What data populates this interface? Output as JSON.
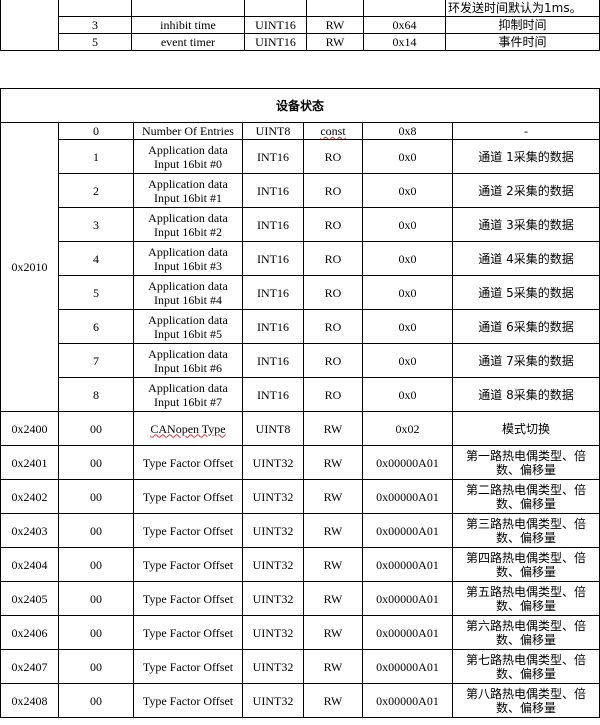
{
  "prev_table": {
    "note": "环发送时间默认为1ms。",
    "rows": [
      {
        "sub": "3",
        "name": "inhibit time",
        "type": "UINT16",
        "access": "RW",
        "default": "0x64",
        "desc": "抑制时间"
      },
      {
        "sub": "5",
        "name": "event timer",
        "type": "UINT16",
        "access": "RW",
        "default": "0x14",
        "desc": "事件时间"
      }
    ]
  },
  "device_status": {
    "title": "设备状态",
    "index_2010": "0x2010",
    "entries_row": {
      "sub": "0",
      "name": "Number Of Entries",
      "type": "UINT8",
      "access": "const",
      "default": "0x8",
      "desc": "-"
    },
    "inputs": [
      {
        "sub": "1",
        "name": "Application data Input 16bit #0",
        "type": "INT16",
        "access": "RO",
        "default": "0x0",
        "desc": "通道 1采集的数据"
      },
      {
        "sub": "2",
        "name": "Application data Input 16bit #1",
        "type": "INT16",
        "access": "RO",
        "default": "0x0",
        "desc": "通道 2采集的数据"
      },
      {
        "sub": "3",
        "name": "Application data Input 16bit #2",
        "type": "INT16",
        "access": "RO",
        "default": "0x0",
        "desc": "通道 3采集的数据"
      },
      {
        "sub": "4",
        "name": "Application data Input 16bit #3",
        "type": "INT16",
        "access": "RO",
        "default": "0x0",
        "desc": "通道 4采集的数据"
      },
      {
        "sub": "5",
        "name": "Application data Input 16bit #4",
        "type": "INT16",
        "access": "RO",
        "default": "0x0",
        "desc": "通道 5采集的数据"
      },
      {
        "sub": "6",
        "name": "Application data Input 16bit #5",
        "type": "INT16",
        "access": "RO",
        "default": "0x0",
        "desc": "通道 6采集的数据"
      },
      {
        "sub": "7",
        "name": "Application data Input 16bit #6",
        "type": "INT16",
        "access": "RO",
        "default": "0x0",
        "desc": "通道 7采集的数据"
      },
      {
        "sub": "8",
        "name": "Application data Input 16bit #7",
        "type": "INT16",
        "access": "RO",
        "default": "0x0",
        "desc": "通道 8采集的数据"
      }
    ],
    "others": [
      {
        "index": "0x2400",
        "sub": "00",
        "name": "CANopen Type",
        "type": "UINT8",
        "access": "RW",
        "default": "0x02",
        "desc": "模式切换"
      },
      {
        "index": "0x2401",
        "sub": "00",
        "name": "Type Factor Offset",
        "type": "UINT32",
        "access": "RW",
        "default": "0x00000A01",
        "desc": "第一路热电偶类型、倍数、偏移量"
      },
      {
        "index": "0x2402",
        "sub": "00",
        "name": "Type Factor Offset",
        "type": "UINT32",
        "access": "RW",
        "default": "0x00000A01",
        "desc": "第二路热电偶类型、倍数、偏移量"
      },
      {
        "index": "0x2403",
        "sub": "00",
        "name": "Type Factor Offset",
        "type": "UINT32",
        "access": "RW",
        "default": "0x00000A01",
        "desc": "第三路热电偶类型、倍数、偏移量"
      },
      {
        "index": "0x2404",
        "sub": "00",
        "name": "Type Factor Offset",
        "type": "UINT32",
        "access": "RW",
        "default": "0x00000A01",
        "desc": "第四路热电偶类型、倍数、偏移量"
      },
      {
        "index": "0x2405",
        "sub": "00",
        "name": "Type Factor Offset",
        "type": "UINT32",
        "access": "RW",
        "default": "0x00000A01",
        "desc": "第五路热电偶类型、倍数、偏移量"
      },
      {
        "index": "0x2406",
        "sub": "00",
        "name": "Type Factor Offset",
        "type": "UINT32",
        "access": "RW",
        "default": "0x00000A01",
        "desc": "第六路热电偶类型、倍数、偏移量"
      },
      {
        "index": "0x2407",
        "sub": "00",
        "name": "Type Factor Offset",
        "type": "UINT32",
        "access": "RW",
        "default": "0x00000A01",
        "desc": "第七路热电偶类型、倍数、偏移量"
      },
      {
        "index": "0x2408",
        "sub": "00",
        "name": "Type Factor Offset",
        "type": "UINT32",
        "access": "RW",
        "default": "0x00000A01",
        "desc": "第八路热电偶类型、倍数、偏移量"
      }
    ]
  }
}
